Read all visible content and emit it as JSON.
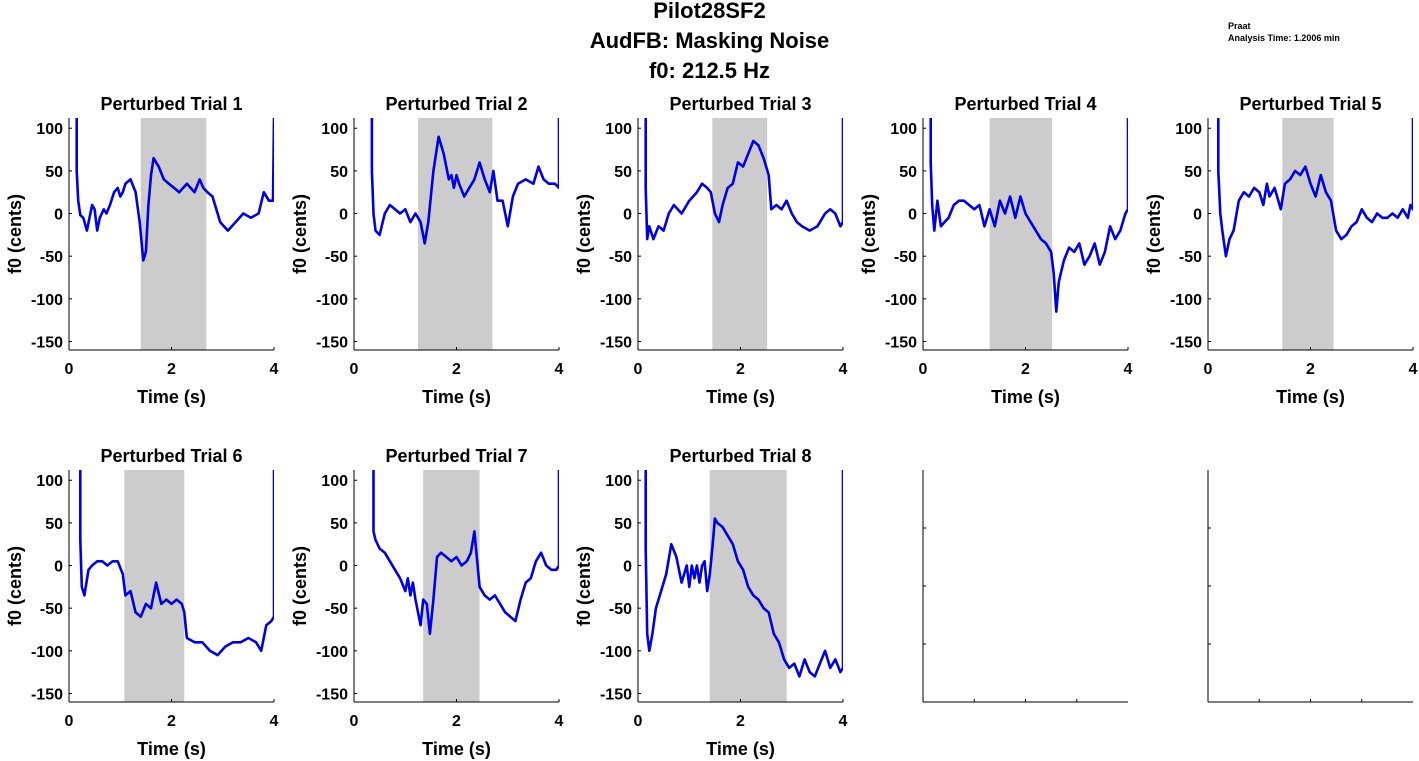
{
  "figure": {
    "title_lines": [
      "Pilot28SF2",
      "AudFB: Masking Noise",
      "f0: 212.5 Hz"
    ],
    "corner_text": [
      "Praat",
      "Analysis Time: 1.2006 min"
    ]
  },
  "colors": {
    "line": "#0000e6",
    "shade": "#cccccc",
    "axis": "#000000"
  },
  "chart_data": [
    {
      "type": "line",
      "title": "Perturbed Trial 1",
      "xlabel": "Time (s)",
      "ylabel": "f0 (cents)",
      "xlim": [
        0,
        4
      ],
      "ylim": [
        -160,
        112
      ],
      "xticks": [
        0,
        2,
        4
      ],
      "yticks": [
        100,
        50,
        0,
        -50,
        -100,
        -150
      ],
      "shade": [
        1.4,
        2.68
      ],
      "x": [
        0.15,
        0.15,
        0.18,
        0.22,
        0.28,
        0.35,
        0.4,
        0.45,
        0.5,
        0.55,
        0.6,
        0.68,
        0.73,
        0.8,
        0.88,
        0.95,
        1.0,
        1.05,
        1.1,
        1.2,
        1.3,
        1.38,
        1.45,
        1.5,
        1.55,
        1.6,
        1.65,
        1.7,
        1.75,
        1.85,
        1.95,
        2.05,
        2.15,
        2.3,
        2.45,
        2.55,
        2.62,
        2.7,
        2.8,
        2.95,
        3.1,
        3.25,
        3.4,
        3.55,
        3.7,
        3.8,
        3.9,
        3.98,
        4.0
      ],
      "y": [
        112,
        50,
        15,
        -2,
        -5,
        -20,
        -5,
        10,
        5,
        -20,
        -5,
        5,
        0,
        10,
        25,
        30,
        20,
        25,
        35,
        40,
        25,
        -10,
        -55,
        -45,
        10,
        45,
        65,
        60,
        55,
        40,
        35,
        30,
        25,
        35,
        25,
        40,
        30,
        25,
        20,
        -10,
        -20,
        -10,
        0,
        -5,
        0,
        25,
        15,
        15,
        112
      ]
    },
    {
      "type": "line",
      "title": "Perturbed Trial 2",
      "xlabel": "Time (s)",
      "ylabel": "f0 (cents)",
      "xlim": [
        0,
        4
      ],
      "ylim": [
        -160,
        112
      ],
      "xticks": [
        0,
        2,
        4
      ],
      "yticks": [
        100,
        50,
        0,
        -50,
        -100,
        -150
      ],
      "shade": [
        1.25,
        2.7
      ],
      "x": [
        0.35,
        0.35,
        0.38,
        0.42,
        0.5,
        0.6,
        0.7,
        0.8,
        0.9,
        1.0,
        1.1,
        1.2,
        1.3,
        1.38,
        1.45,
        1.55,
        1.65,
        1.75,
        1.85,
        1.9,
        1.95,
        2.0,
        2.05,
        2.15,
        2.25,
        2.35,
        2.45,
        2.5,
        2.55,
        2.65,
        2.72,
        2.8,
        2.9,
        3.0,
        3.1,
        3.2,
        3.35,
        3.5,
        3.6,
        3.7,
        3.8,
        3.92,
        4.0,
        4.0
      ],
      "y": [
        112,
        50,
        0,
        -20,
        -25,
        0,
        10,
        5,
        0,
        5,
        -10,
        0,
        -10,
        -35,
        -10,
        50,
        90,
        70,
        40,
        45,
        30,
        45,
        35,
        20,
        30,
        40,
        60,
        50,
        40,
        25,
        50,
        15,
        15,
        -15,
        20,
        35,
        40,
        35,
        55,
        40,
        35,
        35,
        30,
        112
      ]
    },
    {
      "type": "line",
      "title": "Perturbed Trial 3",
      "xlabel": "Time (s)",
      "ylabel": "f0 (cents)",
      "xlim": [
        0,
        4
      ],
      "ylim": [
        -160,
        112
      ],
      "xticks": [
        0,
        2,
        4
      ],
      "yticks": [
        100,
        50,
        0,
        -50,
        -100,
        -150
      ],
      "shade": [
        1.45,
        2.52
      ],
      "x": [
        0.15,
        0.15,
        0.18,
        0.22,
        0.3,
        0.4,
        0.5,
        0.6,
        0.7,
        0.85,
        1.0,
        1.15,
        1.25,
        1.35,
        1.42,
        1.5,
        1.58,
        1.65,
        1.75,
        1.85,
        1.95,
        2.05,
        2.15,
        2.25,
        2.35,
        2.45,
        2.55,
        2.6,
        2.7,
        2.8,
        2.9,
        3.0,
        3.1,
        3.2,
        3.35,
        3.5,
        3.65,
        3.75,
        3.85,
        3.95,
        4.0,
        4.0
      ],
      "y": [
        112,
        30,
        -30,
        -15,
        -30,
        -15,
        -20,
        0,
        10,
        0,
        15,
        25,
        35,
        30,
        25,
        0,
        -10,
        10,
        30,
        35,
        60,
        55,
        70,
        85,
        80,
        65,
        45,
        5,
        10,
        5,
        15,
        0,
        -10,
        -15,
        -20,
        -15,
        0,
        5,
        0,
        -15,
        -10,
        112
      ]
    },
    {
      "type": "line",
      "title": "Perturbed Trial 4",
      "xlabel": "Time (s)",
      "ylabel": "f0 (cents)",
      "xlim": [
        0,
        4
      ],
      "ylim": [
        -160,
        112
      ],
      "xticks": [
        0,
        2,
        4
      ],
      "yticks": [
        100,
        50,
        0,
        -50,
        -100,
        -150
      ],
      "shade": [
        1.3,
        2.52
      ],
      "x": [
        0.15,
        0.15,
        0.18,
        0.22,
        0.28,
        0.35,
        0.42,
        0.5,
        0.6,
        0.7,
        0.8,
        0.9,
        1.0,
        1.1,
        1.2,
        1.3,
        1.4,
        1.5,
        1.6,
        1.7,
        1.8,
        1.9,
        2.0,
        2.1,
        2.2,
        2.3,
        2.4,
        2.5,
        2.55,
        2.6,
        2.65,
        2.75,
        2.85,
        2.95,
        3.05,
        3.15,
        3.25,
        3.35,
        3.45,
        3.55,
        3.65,
        3.75,
        3.85,
        3.95,
        4.0,
        4.0
      ],
      "y": [
        112,
        60,
        10,
        -20,
        15,
        -15,
        -10,
        -5,
        10,
        15,
        15,
        10,
        5,
        10,
        -15,
        5,
        -15,
        15,
        0,
        20,
        -5,
        20,
        0,
        -10,
        -20,
        -30,
        -35,
        -45,
        -70,
        -115,
        -80,
        -55,
        -40,
        -45,
        -35,
        -60,
        -50,
        -35,
        -60,
        -45,
        -15,
        -30,
        -20,
        0,
        5,
        112
      ]
    },
    {
      "type": "line",
      "title": "Perturbed Trial 5",
      "xlabel": "Time (s)",
      "ylabel": "f0 (cents)",
      "xlim": [
        0,
        4
      ],
      "ylim": [
        -160,
        112
      ],
      "xticks": [
        0,
        2,
        4
      ],
      "yticks": [
        100,
        50,
        0,
        -50,
        -100,
        -150
      ],
      "shade": [
        1.45,
        2.45
      ],
      "x": [
        0.2,
        0.2,
        0.24,
        0.28,
        0.35,
        0.42,
        0.5,
        0.6,
        0.7,
        0.8,
        0.9,
        1.0,
        1.08,
        1.15,
        1.2,
        1.3,
        1.42,
        1.5,
        1.6,
        1.7,
        1.8,
        1.9,
        2.0,
        2.1,
        2.2,
        2.3,
        2.4,
        2.5,
        2.6,
        2.7,
        2.8,
        2.9,
        3.0,
        3.1,
        3.2,
        3.3,
        3.4,
        3.5,
        3.6,
        3.7,
        3.8,
        3.9,
        3.95,
        4.0,
        4.0
      ],
      "y": [
        112,
        50,
        0,
        -20,
        -50,
        -30,
        -20,
        15,
        25,
        20,
        30,
        25,
        10,
        35,
        20,
        30,
        5,
        35,
        40,
        50,
        45,
        55,
        35,
        20,
        45,
        25,
        15,
        -20,
        -30,
        -25,
        -15,
        -10,
        5,
        -5,
        -10,
        0,
        -5,
        -5,
        0,
        -5,
        5,
        -5,
        10,
        5,
        112
      ]
    },
    {
      "type": "line",
      "title": "Perturbed Trial 6",
      "xlabel": "Time (s)",
      "ylabel": "f0 (cents)",
      "xlim": [
        0,
        4
      ],
      "ylim": [
        -160,
        112
      ],
      "xticks": [
        0,
        2,
        4
      ],
      "yticks": [
        100,
        50,
        0,
        -50,
        -100,
        -150
      ],
      "shade": [
        1.08,
        2.25
      ],
      "x": [
        0.22,
        0.22,
        0.25,
        0.3,
        0.38,
        0.45,
        0.55,
        0.65,
        0.75,
        0.85,
        0.95,
        1.05,
        1.1,
        1.2,
        1.3,
        1.4,
        1.5,
        1.6,
        1.7,
        1.8,
        1.9,
        2.0,
        2.1,
        2.2,
        2.25,
        2.3,
        2.45,
        2.6,
        2.75,
        2.9,
        3.05,
        3.2,
        3.35,
        3.5,
        3.65,
        3.75,
        3.85,
        3.95,
        4.0,
        4.0
      ],
      "y": [
        112,
        30,
        -25,
        -35,
        -5,
        0,
        5,
        5,
        0,
        5,
        5,
        -10,
        -35,
        -30,
        -55,
        -60,
        -45,
        -50,
        -20,
        -45,
        -40,
        -45,
        -40,
        -45,
        -55,
        -85,
        -90,
        -90,
        -100,
        -105,
        -95,
        -90,
        -90,
        -85,
        -90,
        -100,
        -70,
        -65,
        -60,
        112
      ]
    },
    {
      "type": "line",
      "title": "Perturbed Trial 7",
      "xlabel": "Time (s)",
      "ylabel": "f0 (cents)",
      "xlim": [
        0,
        4
      ],
      "ylim": [
        -160,
        112
      ],
      "xticks": [
        0,
        2,
        4
      ],
      "yticks": [
        100,
        50,
        0,
        -50,
        -100,
        -150
      ],
      "shade": [
        1.35,
        2.45
      ],
      "x": [
        0.38,
        0.38,
        0.42,
        0.5,
        0.6,
        0.7,
        0.8,
        0.9,
        1.0,
        1.05,
        1.1,
        1.15,
        1.2,
        1.3,
        1.35,
        1.42,
        1.48,
        1.55,
        1.62,
        1.7,
        1.8,
        1.9,
        2.0,
        2.1,
        2.2,
        2.28,
        2.35,
        2.45,
        2.55,
        2.65,
        2.75,
        2.85,
        2.95,
        3.05,
        3.15,
        3.25,
        3.35,
        3.45,
        3.55,
        3.65,
        3.75,
        3.85,
        3.95,
        4.0,
        4.0
      ],
      "y": [
        112,
        40,
        30,
        20,
        15,
        5,
        -5,
        -15,
        -30,
        -15,
        -35,
        -20,
        -40,
        -70,
        -40,
        -45,
        -80,
        -40,
        10,
        15,
        10,
        5,
        10,
        0,
        5,
        15,
        40,
        -25,
        -35,
        -40,
        -35,
        -45,
        -55,
        -60,
        -65,
        -40,
        -20,
        -15,
        5,
        15,
        0,
        -5,
        -5,
        0,
        112
      ]
    },
    {
      "type": "line",
      "title": "Perturbed Trial 8",
      "xlabel": "Time (s)",
      "ylabel": "f0 (cents)",
      "xlim": [
        0,
        4
      ],
      "ylim": [
        -160,
        112
      ],
      "xticks": [
        0,
        2,
        4
      ],
      "yticks": [
        100,
        50,
        0,
        -50,
        -100,
        -150
      ],
      "shade": [
        1.4,
        2.9
      ],
      "x": [
        0.15,
        0.15,
        0.18,
        0.22,
        0.28,
        0.35,
        0.45,
        0.55,
        0.65,
        0.75,
        0.85,
        0.95,
        1.0,
        1.05,
        1.1,
        1.15,
        1.2,
        1.25,
        1.3,
        1.35,
        1.4,
        1.45,
        1.5,
        1.55,
        1.65,
        1.75,
        1.85,
        1.95,
        2.05,
        2.15,
        2.25,
        2.35,
        2.45,
        2.55,
        2.65,
        2.75,
        2.85,
        2.95,
        3.05,
        3.15,
        3.25,
        3.35,
        3.45,
        3.55,
        3.65,
        3.75,
        3.85,
        3.95,
        4.0,
        4.0
      ],
      "y": [
        112,
        20,
        -80,
        -100,
        -80,
        -50,
        -30,
        -10,
        25,
        10,
        -20,
        0,
        -25,
        0,
        -15,
        0,
        -20,
        0,
        5,
        -30,
        -10,
        20,
        55,
        50,
        45,
        35,
        25,
        5,
        -5,
        -25,
        -35,
        -40,
        -50,
        -55,
        -80,
        -90,
        -110,
        -120,
        -115,
        -130,
        -110,
        -125,
        -130,
        -115,
        -100,
        -120,
        -110,
        -125,
        -120,
        112
      ]
    },
    {
      "type": "line",
      "title": "",
      "xlabel": "",
      "ylabel": "",
      "xlim": [
        0,
        4
      ],
      "ylim": [
        -160,
        112
      ],
      "xticks": [],
      "yticks": [],
      "empty": true,
      "x": [],
      "y": []
    },
    {
      "type": "line",
      "title": "",
      "xlabel": "",
      "ylabel": "",
      "xlim": [
        0,
        4
      ],
      "ylim": [
        -160,
        112
      ],
      "xticks": [],
      "yticks": [],
      "empty": true,
      "x": [],
      "y": []
    }
  ]
}
